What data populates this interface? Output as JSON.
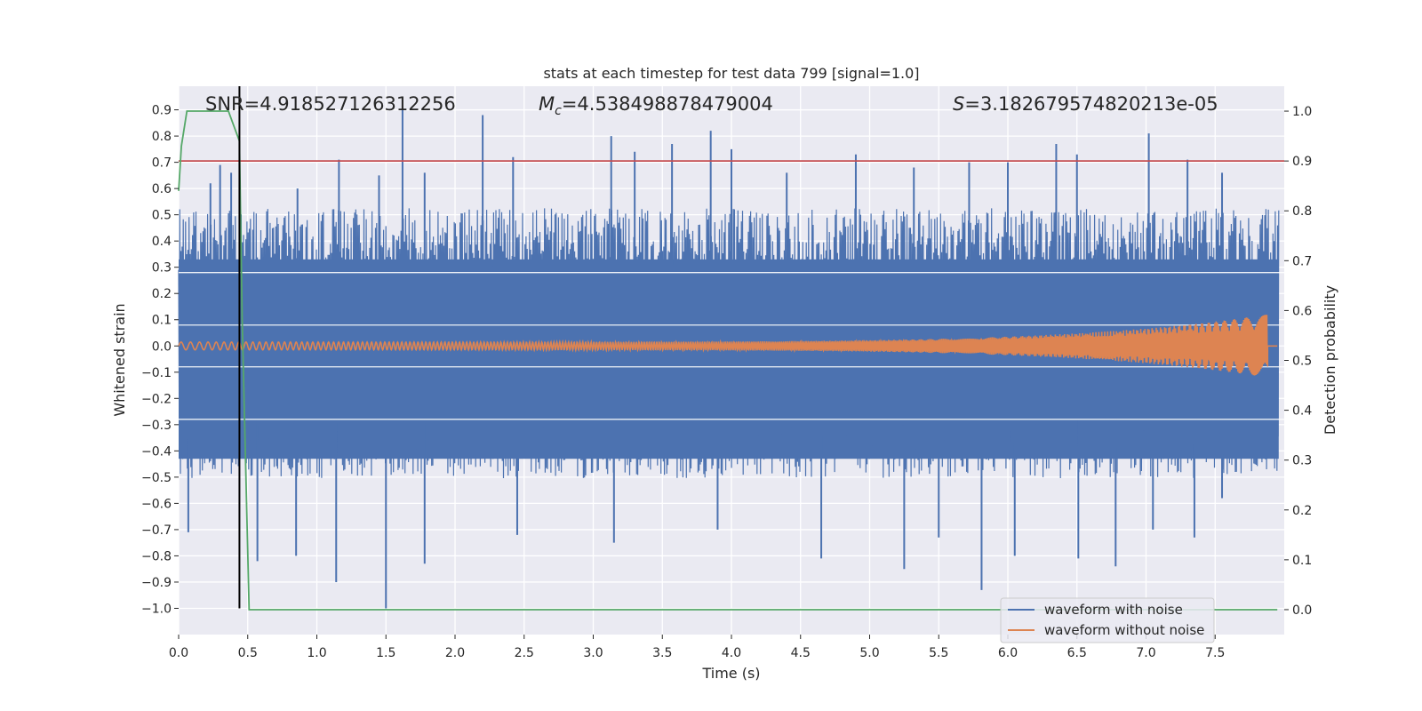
{
  "chart_data": {
    "type": "line",
    "title": "stats at each timestep for test data 799 [signal=1.0]",
    "xlabel": "Time (s)",
    "ylabel": "Whitened strain",
    "ylabel_right": "Detection probability",
    "xlim": [
      0.0,
      8.0
    ],
    "ylim": [
      -1.1,
      0.99
    ],
    "ylim_right": [
      -0.05,
      1.05
    ],
    "xticks": [
      0.0,
      0.5,
      1.0,
      1.5,
      2.0,
      2.5,
      3.0,
      3.5,
      4.0,
      4.5,
      5.0,
      5.5,
      6.0,
      6.5,
      7.0,
      7.5
    ],
    "xtick_labels": [
      "0.0",
      "0.5",
      "1.0",
      "1.5",
      "2.0",
      "2.5",
      "3.0",
      "3.5",
      "4.0",
      "4.5",
      "5.0",
      "5.5",
      "6.0",
      "6.5",
      "7.0",
      "7.5"
    ],
    "yticks": [
      0.9,
      0.8,
      0.7,
      0.6,
      0.5,
      0.4,
      0.3,
      0.2,
      0.1,
      0.0,
      -0.1,
      -0.2,
      -0.3,
      -0.4,
      -0.5,
      -0.6,
      -0.7,
      -0.8,
      -0.9,
      -1.0
    ],
    "ytick_labels": [
      "0.9",
      "0.8",
      "0.7",
      "0.6",
      "0.5",
      "0.4",
      "0.3",
      "0.2",
      "0.1",
      "0.0",
      "−0.1",
      "−0.2",
      "−0.3",
      "−0.4",
      "−0.5",
      "−0.6",
      "−0.7",
      "−0.8",
      "−0.9",
      "−1.0"
    ],
    "yticks_right": [
      1.0,
      0.9,
      0.8,
      0.7,
      0.6,
      0.5,
      0.4,
      0.3,
      0.2,
      0.1,
      0.0
    ],
    "ytick_labels_right": [
      "1.0",
      "0.9",
      "0.8",
      "0.7",
      "0.6",
      "0.5",
      "0.4",
      "0.3",
      "0.2",
      "0.1",
      "0.0"
    ],
    "annotations": {
      "snr": "SNR=4.918527126312256",
      "mc_symbol": "M",
      "mc_sub": "c",
      "mc_value": "=4.538498878479004",
      "s_symbol": "S",
      "s_value": "=3.182679574820213e-05"
    },
    "series": [
      {
        "name": "waveform with noise",
        "color": "#4c72b0",
        "axis": "left",
        "description": "dense noisy strain, roughly ±0.5 with spikes to ±0.9",
        "envelope_top": 0.5,
        "envelope_bottom": -0.48,
        "peaks": [
          [
            0.23,
            0.62
          ],
          [
            0.3,
            0.69
          ],
          [
            0.38,
            0.66
          ],
          [
            0.86,
            0.6
          ],
          [
            1.16,
            0.71
          ],
          [
            1.45,
            0.65
          ],
          [
            1.62,
            0.9
          ],
          [
            1.78,
            0.66
          ],
          [
            2.2,
            0.88
          ],
          [
            2.42,
            0.72
          ],
          [
            3.13,
            0.8
          ],
          [
            3.3,
            0.74
          ],
          [
            3.57,
            0.77
          ],
          [
            3.85,
            0.82
          ],
          [
            4.0,
            0.75
          ],
          [
            4.4,
            0.66
          ],
          [
            4.9,
            0.73
          ],
          [
            5.32,
            0.68
          ],
          [
            5.72,
            0.7
          ],
          [
            6.0,
            0.7
          ],
          [
            6.35,
            0.77
          ],
          [
            6.5,
            0.73
          ],
          [
            7.02,
            0.81
          ],
          [
            7.3,
            0.71
          ],
          [
            7.55,
            0.66
          ]
        ],
        "troughs": [
          [
            0.07,
            -0.71
          ],
          [
            0.57,
            -0.82
          ],
          [
            0.85,
            -0.8
          ],
          [
            1.14,
            -0.9
          ],
          [
            1.5,
            -1.0
          ],
          [
            1.78,
            -0.83
          ],
          [
            2.45,
            -0.72
          ],
          [
            3.15,
            -0.75
          ],
          [
            3.9,
            -0.7
          ],
          [
            4.65,
            -0.81
          ],
          [
            5.25,
            -0.85
          ],
          [
            5.5,
            -0.73
          ],
          [
            5.81,
            -0.93
          ],
          [
            6.05,
            -0.8
          ],
          [
            6.51,
            -0.81
          ],
          [
            6.78,
            -0.84
          ],
          [
            7.05,
            -0.7
          ],
          [
            7.35,
            -0.73
          ],
          [
            7.55,
            -0.58
          ]
        ]
      },
      {
        "name": "waveform without noise",
        "color": "#dd8452",
        "axis": "left",
        "description": "chirp signal, amplitude grows from 0.015 to about 0.12 until merger at 7.88 s, zero afterwards",
        "t_end": 7.88,
        "amp_start": 0.015,
        "amp_end": 0.12
      },
      {
        "name": "detection probability",
        "color": "#55a868",
        "axis": "right",
        "x": [
          0.0,
          0.02,
          0.06,
          0.15,
          0.26,
          0.31,
          0.36,
          0.4,
          0.44,
          0.46,
          0.48,
          0.51,
          1.0,
          7.95
        ],
        "y": [
          0.84,
          0.93,
          1.0,
          1.0,
          1.0,
          1.0,
          1.0,
          0.97,
          0.94,
          0.58,
          0.35,
          0.0,
          0.0,
          0.0
        ]
      }
    ],
    "threshold": {
      "y": 0.9,
      "axis": "right",
      "color": "#c44e52"
    },
    "detection_marker": {
      "x": 0.44,
      "y_top": 0.99,
      "y_bottom": -1.0,
      "axis": "left",
      "color": "#000000"
    },
    "legend": {
      "position": "lower-right",
      "entries": [
        {
          "label": "waveform with noise",
          "color": "#4c72b0"
        },
        {
          "label": "waveform without noise",
          "color": "#dd8452"
        }
      ]
    }
  }
}
